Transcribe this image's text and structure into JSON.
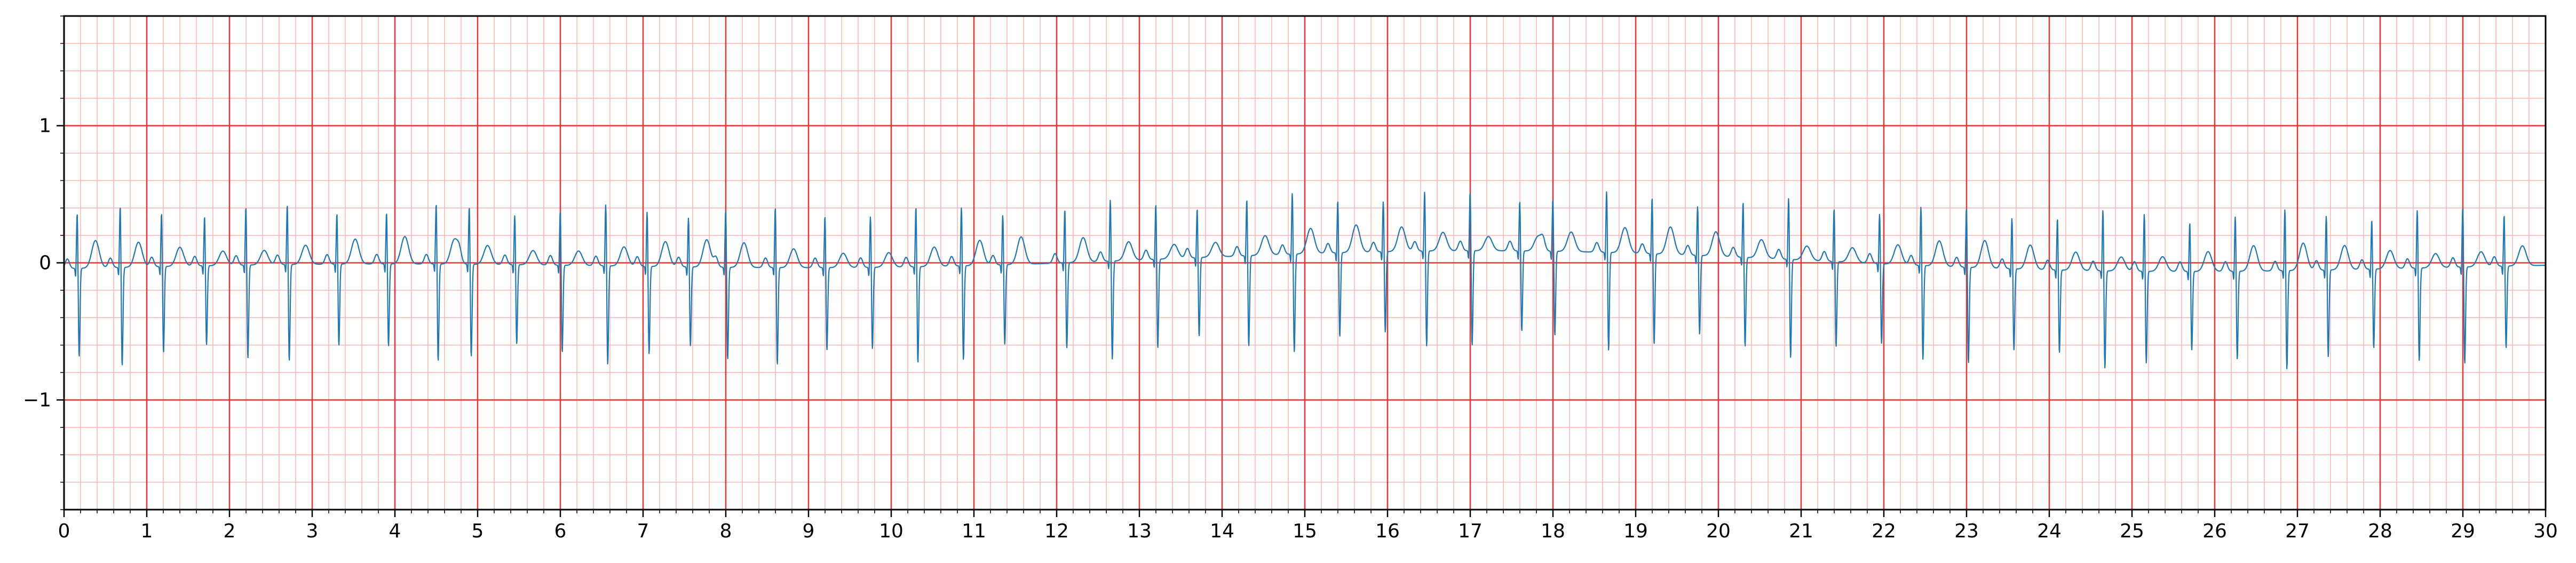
{
  "chart_data": {
    "type": "line",
    "title": "",
    "xlabel": "",
    "ylabel": "",
    "xlim": [
      0,
      30
    ],
    "ylim": [
      -1.8,
      1.8
    ],
    "x_ticks": [
      0,
      1,
      2,
      3,
      4,
      5,
      6,
      7,
      8,
      9,
      10,
      11,
      12,
      13,
      14,
      15,
      16,
      17,
      18,
      19,
      20,
      21,
      22,
      23,
      24,
      25,
      26,
      27,
      28,
      29,
      30
    ],
    "x_tick_labels": [
      "0",
      "1",
      "2",
      "3",
      "4",
      "5",
      "6",
      "7",
      "8",
      "9",
      "10",
      "11",
      "12",
      "13",
      "14",
      "15",
      "16",
      "17",
      "18",
      "19",
      "20",
      "21",
      "22",
      "23",
      "24",
      "25",
      "26",
      "27",
      "28",
      "29",
      "30"
    ],
    "y_ticks": [
      -1,
      0,
      1
    ],
    "y_tick_labels": [
      "−1",
      "0",
      "1"
    ],
    "grid": {
      "major_x_step": 1,
      "major_y_step": 1,
      "minor_x_step": 0.2,
      "minor_y_step": 0.2,
      "major_color": "#ee3333",
      "minor_color": "#ffb3b3"
    },
    "series": [
      {
        "color": "#1f77b4",
        "beat_times": [
          0.16,
          0.68,
          1.18,
          1.7,
          2.2,
          2.7,
          3.3,
          3.9,
          4.5,
          4.9,
          5.45,
          6.0,
          6.55,
          7.05,
          7.55,
          8.0,
          8.6,
          9.2,
          9.75,
          10.3,
          10.85,
          11.35,
          12.1,
          12.65,
          13.2,
          13.7,
          14.3,
          14.85,
          15.4,
          15.95,
          16.45,
          17.0,
          17.6,
          18.0,
          18.65,
          19.2,
          19.75,
          20.3,
          20.85,
          21.4,
          21.95,
          22.45,
          23.0,
          23.55,
          24.1,
          24.65,
          25.15,
          25.7,
          26.25,
          26.85,
          27.35,
          27.9,
          28.45,
          29.0,
          29.5
        ]
      }
    ]
  }
}
